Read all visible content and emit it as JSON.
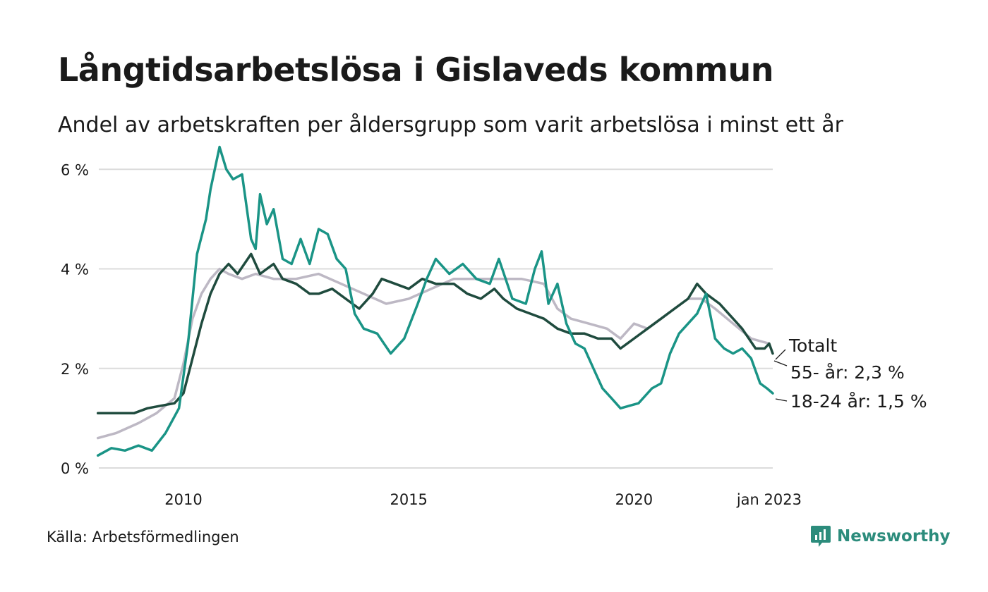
{
  "title": "Långtidsarbetslösa i Gislaveds kommun",
  "subtitle": "Andel av arbetskraften per åldersgrupp som varit arbetslösa i minst ett år",
  "source": "Källa: Arbetsförmedlingen",
  "brand": "Newsworthy",
  "colors": {
    "total": "#bdb8c4",
    "age55": "#1f4b3e",
    "age18_24": "#1a9486",
    "grid": "#dcdcdc",
    "brand": "#2c8c7c"
  },
  "chart_data": {
    "type": "line",
    "title": "Långtidsarbetslösa i Gislaveds kommun",
    "subtitle": "Andel av arbetskraften per åldersgrupp som varit arbetslösa i minst ett år",
    "ylim": [
      0,
      6.5
    ],
    "xlim": [
      2008.12,
      2023.08
    ],
    "yticks": [
      0,
      2,
      4,
      6
    ],
    "ytick_labels": [
      "0 %",
      "2 %",
      "4 %",
      "6 %"
    ],
    "xticks": [
      2010,
      2015,
      2020,
      2023.0
    ],
    "xtick_labels": [
      "2010",
      "2015",
      "2020",
      "jan 2023"
    ],
    "grid": "horizontal",
    "series": [
      {
        "key": "total",
        "name": "Totalt",
        "end_label": "Totalt",
        "points": [
          [
            2008.1,
            0.6
          ],
          [
            2008.5,
            0.7
          ],
          [
            2009.0,
            0.9
          ],
          [
            2009.4,
            1.1
          ],
          [
            2009.8,
            1.4
          ],
          [
            2010.0,
            2.1
          ],
          [
            2010.2,
            3.0
          ],
          [
            2010.4,
            3.5
          ],
          [
            2010.6,
            3.8
          ],
          [
            2010.8,
            4.0
          ],
          [
            2011.0,
            3.9
          ],
          [
            2011.3,
            3.8
          ],
          [
            2011.6,
            3.9
          ],
          [
            2012.0,
            3.8
          ],
          [
            2012.5,
            3.8
          ],
          [
            2013.0,
            3.9
          ],
          [
            2013.5,
            3.7
          ],
          [
            2014.0,
            3.5
          ],
          [
            2014.5,
            3.3
          ],
          [
            2015.0,
            3.4
          ],
          [
            2015.5,
            3.6
          ],
          [
            2016.0,
            3.8
          ],
          [
            2016.5,
            3.8
          ],
          [
            2017.0,
            3.8
          ],
          [
            2017.5,
            3.8
          ],
          [
            2018.0,
            3.7
          ],
          [
            2018.3,
            3.2
          ],
          [
            2018.6,
            3.0
          ],
          [
            2019.0,
            2.9
          ],
          [
            2019.4,
            2.8
          ],
          [
            2019.7,
            2.6
          ],
          [
            2020.0,
            2.9
          ],
          [
            2020.3,
            2.8
          ],
          [
            2020.6,
            3.0
          ],
          [
            2020.9,
            3.2
          ],
          [
            2021.2,
            3.4
          ],
          [
            2021.5,
            3.4
          ],
          [
            2021.8,
            3.2
          ],
          [
            2022.2,
            2.9
          ],
          [
            2022.6,
            2.6
          ],
          [
            2023.0,
            2.5
          ]
        ]
      },
      {
        "key": "age55",
        "name": "55- år",
        "end_label": "55- år: 2,3 %",
        "last_value": 2.3,
        "points": [
          [
            2008.1,
            1.1
          ],
          [
            2008.5,
            1.1
          ],
          [
            2008.9,
            1.1
          ],
          [
            2009.2,
            1.2
          ],
          [
            2009.5,
            1.25
          ],
          [
            2009.8,
            1.3
          ],
          [
            2010.0,
            1.5
          ],
          [
            2010.2,
            2.2
          ],
          [
            2010.4,
            2.9
          ],
          [
            2010.6,
            3.5
          ],
          [
            2010.8,
            3.9
          ],
          [
            2011.0,
            4.1
          ],
          [
            2011.2,
            3.9
          ],
          [
            2011.5,
            4.3
          ],
          [
            2011.7,
            3.9
          ],
          [
            2012.0,
            4.1
          ],
          [
            2012.2,
            3.8
          ],
          [
            2012.5,
            3.7
          ],
          [
            2012.8,
            3.5
          ],
          [
            2013.0,
            3.5
          ],
          [
            2013.3,
            3.6
          ],
          [
            2013.6,
            3.4
          ],
          [
            2013.9,
            3.2
          ],
          [
            2014.2,
            3.5
          ],
          [
            2014.4,
            3.8
          ],
          [
            2014.7,
            3.7
          ],
          [
            2015.0,
            3.6
          ],
          [
            2015.3,
            3.8
          ],
          [
            2015.6,
            3.7
          ],
          [
            2016.0,
            3.7
          ],
          [
            2016.3,
            3.5
          ],
          [
            2016.6,
            3.4
          ],
          [
            2016.9,
            3.6
          ],
          [
            2017.1,
            3.4
          ],
          [
            2017.4,
            3.2
          ],
          [
            2017.7,
            3.1
          ],
          [
            2018.0,
            3.0
          ],
          [
            2018.3,
            2.8
          ],
          [
            2018.6,
            2.7
          ],
          [
            2018.9,
            2.7
          ],
          [
            2019.2,
            2.6
          ],
          [
            2019.5,
            2.6
          ],
          [
            2019.7,
            2.4
          ],
          [
            2020.0,
            2.6
          ],
          [
            2020.3,
            2.8
          ],
          [
            2020.6,
            3.0
          ],
          [
            2020.9,
            3.2
          ],
          [
            2021.2,
            3.4
          ],
          [
            2021.4,
            3.7
          ],
          [
            2021.6,
            3.5
          ],
          [
            2021.9,
            3.3
          ],
          [
            2022.1,
            3.1
          ],
          [
            2022.4,
            2.8
          ],
          [
            2022.7,
            2.4
          ],
          [
            2022.9,
            2.4
          ],
          [
            2023.0,
            2.5
          ],
          [
            2023.08,
            2.3
          ]
        ]
      },
      {
        "key": "age18_24",
        "name": "18-24 år",
        "end_label": "18-24 år: 1,5 %",
        "last_value": 1.5,
        "points": [
          [
            2008.1,
            0.25
          ],
          [
            2008.4,
            0.4
          ],
          [
            2008.7,
            0.35
          ],
          [
            2009.0,
            0.45
          ],
          [
            2009.3,
            0.35
          ],
          [
            2009.6,
            0.7
          ],
          [
            2009.9,
            1.2
          ],
          [
            2010.1,
            2.5
          ],
          [
            2010.3,
            4.3
          ],
          [
            2010.5,
            5.0
          ],
          [
            2010.6,
            5.6
          ],
          [
            2010.8,
            6.45
          ],
          [
            2010.95,
            6.0
          ],
          [
            2011.1,
            5.8
          ],
          [
            2011.3,
            5.9
          ],
          [
            2011.5,
            4.6
          ],
          [
            2011.6,
            4.4
          ],
          [
            2011.7,
            5.5
          ],
          [
            2011.85,
            4.9
          ],
          [
            2012.0,
            5.2
          ],
          [
            2012.2,
            4.2
          ],
          [
            2012.4,
            4.1
          ],
          [
            2012.6,
            4.6
          ],
          [
            2012.8,
            4.1
          ],
          [
            2013.0,
            4.8
          ],
          [
            2013.2,
            4.7
          ],
          [
            2013.4,
            4.2
          ],
          [
            2013.6,
            4.0
          ],
          [
            2013.8,
            3.1
          ],
          [
            2014.0,
            2.8
          ],
          [
            2014.3,
            2.7
          ],
          [
            2014.6,
            2.3
          ],
          [
            2014.9,
            2.6
          ],
          [
            2015.2,
            3.3
          ],
          [
            2015.4,
            3.8
          ],
          [
            2015.6,
            4.2
          ],
          [
            2015.9,
            3.9
          ],
          [
            2016.2,
            4.1
          ],
          [
            2016.5,
            3.8
          ],
          [
            2016.8,
            3.7
          ],
          [
            2017.0,
            4.2
          ],
          [
            2017.3,
            3.4
          ],
          [
            2017.6,
            3.3
          ],
          [
            2017.8,
            4.0
          ],
          [
            2017.95,
            4.35
          ],
          [
            2018.1,
            3.3
          ],
          [
            2018.3,
            3.7
          ],
          [
            2018.5,
            2.9
          ],
          [
            2018.7,
            2.5
          ],
          [
            2018.9,
            2.4
          ],
          [
            2019.1,
            2.0
          ],
          [
            2019.3,
            1.6
          ],
          [
            2019.5,
            1.4
          ],
          [
            2019.7,
            1.2
          ],
          [
            2019.9,
            1.25
          ],
          [
            2020.1,
            1.3
          ],
          [
            2020.4,
            1.6
          ],
          [
            2020.6,
            1.7
          ],
          [
            2020.8,
            2.3
          ],
          [
            2021.0,
            2.7
          ],
          [
            2021.2,
            2.9
          ],
          [
            2021.4,
            3.1
          ],
          [
            2021.6,
            3.5
          ],
          [
            2021.8,
            2.6
          ],
          [
            2022.0,
            2.4
          ],
          [
            2022.2,
            2.3
          ],
          [
            2022.4,
            2.4
          ],
          [
            2022.6,
            2.2
          ],
          [
            2022.8,
            1.7
          ],
          [
            2022.95,
            1.6
          ],
          [
            2023.08,
            1.5
          ]
        ]
      }
    ]
  }
}
